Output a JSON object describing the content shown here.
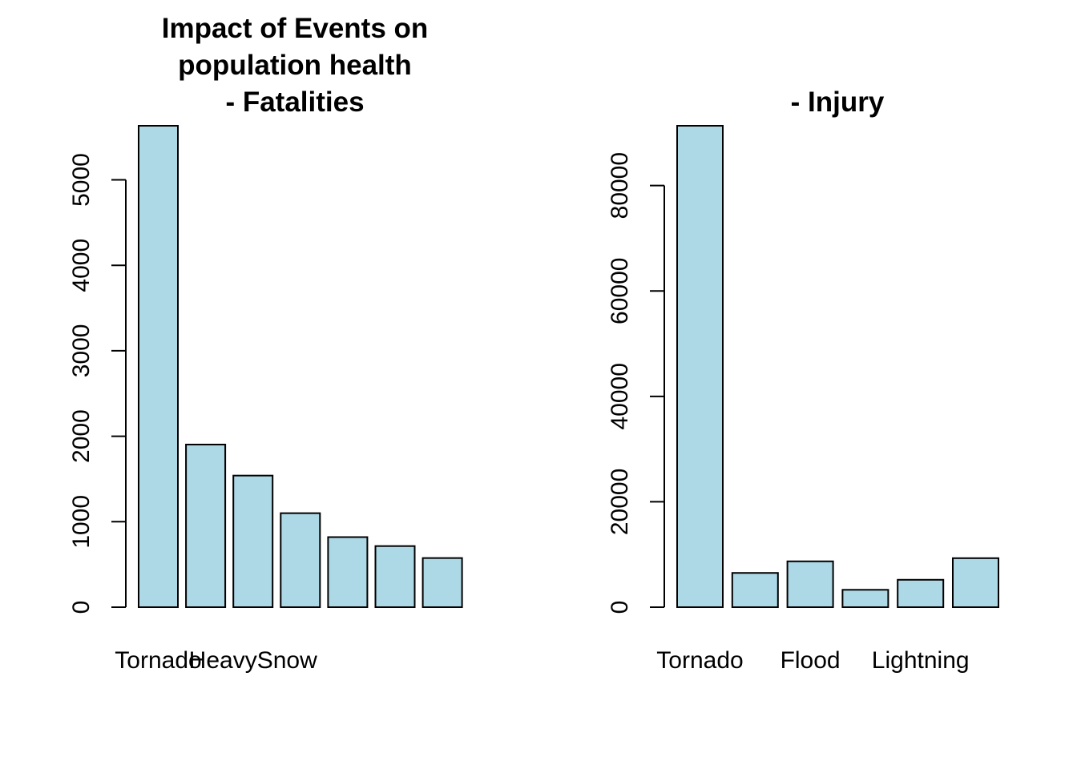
{
  "chart_data": [
    {
      "type": "bar",
      "title_lines": [
        "Impact of Events on",
        "population health",
        "- Fatalities"
      ],
      "xlabel": "",
      "ylabel": "",
      "ylim": [
        0,
        5633
      ],
      "yticks": [
        0,
        1000,
        2000,
        3000,
        4000,
        5000
      ],
      "ytick_labels": [
        "0",
        "1000",
        "2000",
        "3000",
        "4000",
        "5000"
      ],
      "bar_count": 7,
      "values": [
        5633,
        1903,
        1540,
        1100,
        820,
        715,
        575
      ],
      "visible_category_labels": [
        {
          "bar_index": 0,
          "label": "Tornado"
        },
        {
          "bar_index": 2,
          "label": "HeavySnow"
        }
      ],
      "bar_color": "#add8e6",
      "grid": false,
      "legend": "none"
    },
    {
      "type": "bar",
      "title_lines": [
        "- Injury"
      ],
      "xlabel": "",
      "ylabel": "",
      "ylim": [
        0,
        91346
      ],
      "yticks": [
        0,
        20000,
        40000,
        60000,
        80000
      ],
      "ytick_labels": [
        "0",
        "20000",
        "40000",
        "60000",
        "80000"
      ],
      "bar_count": 6,
      "values": [
        91346,
        6500,
        8700,
        3300,
        5200,
        9300
      ],
      "visible_category_labels": [
        {
          "bar_index": 0,
          "label": "Tornado"
        },
        {
          "bar_index": 2,
          "label": "Flood"
        },
        {
          "bar_index": 4,
          "label": "Lightning"
        }
      ],
      "bar_color": "#add8e6",
      "grid": false,
      "legend": "none"
    }
  ]
}
